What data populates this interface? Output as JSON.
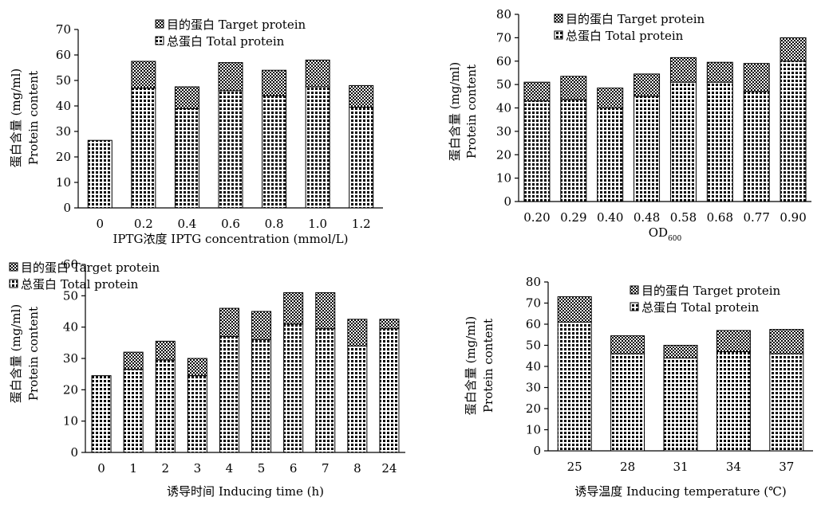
{
  "chart_data": [
    {
      "id": "a",
      "type": "bar",
      "stacked": true,
      "ylim": [
        0,
        70
      ],
      "yticks": [
        0,
        10,
        20,
        30,
        40,
        50,
        60,
        70
      ],
      "categories": [
        "0",
        "0.2",
        "0.4",
        "0.6",
        "0.8",
        "1.0",
        "1.2"
      ],
      "xlabel": "IPTG浓度 IPTG concentration (mmol/L)",
      "xlabel_sub": "",
      "ylabel_cn": "蛋白含量 (mg/ml)",
      "ylabel_en": "Protein content",
      "legend_position": "top-center",
      "series": [
        {
          "name": "总蛋白 Total protein",
          "values": [
            26.5,
            47,
            39,
            46,
            44,
            47.5,
            39.5
          ]
        },
        {
          "name": "目的蛋白 Target protein",
          "values": [
            0,
            10.5,
            8.5,
            11,
            10,
            10.5,
            8.5
          ]
        }
      ]
    },
    {
      "id": "b",
      "type": "bar",
      "stacked": true,
      "ylim": [
        0,
        80
      ],
      "yticks": [
        0,
        10,
        20,
        30,
        40,
        50,
        60,
        70,
        80
      ],
      "categories": [
        "0.20",
        "0.29",
        "0.40",
        "0.48",
        "0.58",
        "0.68",
        "0.77",
        "0.90"
      ],
      "xlabel": "OD",
      "xlabel_sub": "600",
      "ylabel_cn": "蛋白含量 (mg/ml)",
      "ylabel_en": "Protein content",
      "legend_position": "top-center",
      "series": [
        {
          "name": "总蛋白 Total protein",
          "values": [
            43,
            43.5,
            40,
            45,
            51,
            51,
            47,
            60
          ]
        },
        {
          "name": "目的蛋白 Target protein",
          "values": [
            8,
            10,
            8.5,
            9.5,
            10.5,
            8.5,
            12,
            10
          ]
        }
      ]
    },
    {
      "id": "c",
      "type": "bar",
      "stacked": true,
      "ylim": [
        0,
        60
      ],
      "yticks": [
        0,
        10,
        20,
        30,
        40,
        50,
        60
      ],
      "categories": [
        "0",
        "1",
        "2",
        "3",
        "4",
        "5",
        "6",
        "7",
        "8",
        "24"
      ],
      "xlabel": "诱导时间 Inducing time (h)",
      "xlabel_sub": "",
      "ylabel_cn": "蛋白含量 (mg/ml)",
      "ylabel_en": "Protein content",
      "legend_position": "top-left",
      "series": [
        {
          "name": "总蛋白 Total protein",
          "values": [
            24.5,
            26.5,
            29.5,
            24.5,
            37,
            36,
            41,
            39.5,
            34,
            39.5
          ]
        },
        {
          "name": "目的蛋白 Target protein",
          "values": [
            0,
            5.5,
            6,
            5.5,
            9,
            9,
            10,
            11.5,
            8.5,
            3
          ]
        }
      ]
    },
    {
      "id": "d",
      "type": "bar",
      "stacked": true,
      "ylim": [
        0,
        80
      ],
      "yticks": [
        0,
        10,
        20,
        30,
        40,
        50,
        60,
        70,
        80
      ],
      "categories": [
        "25",
        "28",
        "31",
        "34",
        "37"
      ],
      "xlabel": "诱导温度 Inducing temperature (℃)",
      "xlabel_sub": "",
      "ylabel_cn": "蛋白含量 (mg/ml)",
      "ylabel_en": "Protein content",
      "legend_position": "top-right",
      "series": [
        {
          "name": "总蛋白 Total protein",
          "values": [
            61,
            46,
            44,
            47,
            46
          ]
        },
        {
          "name": "目的蛋白 Target protein",
          "values": [
            12,
            8.5,
            6,
            10,
            11.5
          ]
        }
      ]
    }
  ]
}
